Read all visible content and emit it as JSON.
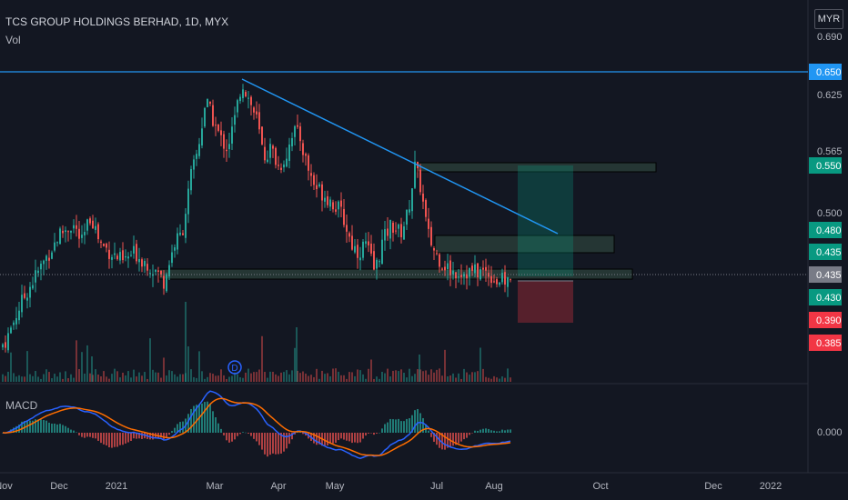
{
  "header": {
    "title": "TCS GROUP HOLDINGS BERHAD, 1D, MYX",
    "vol_label": "Vol",
    "macd_label": "MACD",
    "currency": "MYR",
    "dividend_marker": "D"
  },
  "chart_data": {
    "type": "candlestick",
    "symbol": "TCS GROUP HOLDINGS BERHAD",
    "interval": "1D",
    "exchange": "MYX",
    "currency": "MYR",
    "x_tick_labels": [
      "Nov",
      "Dec",
      "2021",
      "Mar",
      "Apr",
      "May",
      "Jul",
      "Aug",
      "Oct",
      "Dec",
      "2022"
    ],
    "y_tick_labels": [
      "0.690",
      "0.625",
      "0.565",
      "0.500",
      "0.435"
    ],
    "price_tags": [
      {
        "value": "0.650",
        "color": "#2196f3"
      },
      {
        "value": "0.550",
        "color": "#089981"
      },
      {
        "value": "0.480",
        "color": "#089981"
      },
      {
        "value": "0.435",
        "color": "#089981"
      },
      {
        "value": "0.435",
        "color": "#787b86"
      },
      {
        "value": "0.430",
        "color": "#089981"
      },
      {
        "value": "0.390",
        "color": "#f23645"
      },
      {
        "value": "0.385",
        "color": "#f23645"
      }
    ],
    "macd_tick": "0.000",
    "price_series": [
      {
        "date": "2020-11",
        "close": 0.36
      },
      {
        "date": "2020-12",
        "close": 0.49
      },
      {
        "date": "2021-01",
        "close": 0.46
      },
      {
        "date": "2021-02",
        "close": 0.44
      },
      {
        "date": "2021-03",
        "close": 0.65
      },
      {
        "date": "2021-04",
        "close": 0.6
      },
      {
        "date": "2021-05",
        "close": 0.5
      },
      {
        "date": "2021-06",
        "close": 0.55
      },
      {
        "date": "2021-07",
        "close": 0.47
      },
      {
        "date": "2021-08",
        "close": 0.43
      }
    ],
    "horizontal_line": 0.65,
    "trendline": {
      "from": {
        "date": "2021-03",
        "price": 0.65
      },
      "to": {
        "date": "2021-09",
        "price": 0.48
      }
    },
    "zones": [
      {
        "name": "resistance",
        "low": 0.54,
        "high": 0.55
      },
      {
        "name": "mid",
        "low": 0.47,
        "high": 0.48
      },
      {
        "name": "support",
        "low": 0.43,
        "high": 0.44
      }
    ],
    "trade": {
      "entry": 0.435,
      "target": 0.55,
      "stop": 0.385
    },
    "colors": {
      "up": "#26a69a",
      "down": "#ef5350",
      "macd": "#2962ff",
      "signal": "#ff6d00",
      "line": "#2196f3"
    }
  }
}
